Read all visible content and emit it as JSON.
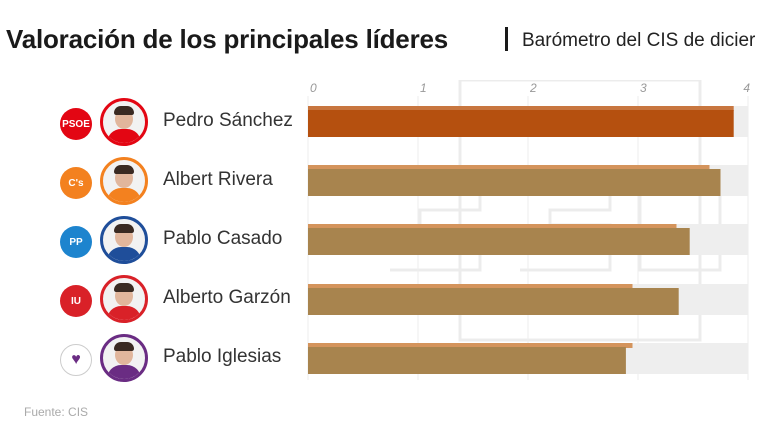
{
  "header": {
    "title": "Valoración de los principales líderes",
    "subtitle": "Barómetro del CIS de dicier"
  },
  "footer": {
    "source": "Fuente: CIS"
  },
  "leaders": [
    {
      "name": "Pedro Sánchez",
      "party_logo_text": "PSOE",
      "logo_bg": "#e30613",
      "logo_fg": "#ffffff",
      "ring_color": "#e30613"
    },
    {
      "name": "Albert Rivera",
      "party_logo_text": "C's",
      "logo_bg": "#f3811f",
      "logo_fg": "#ffffff",
      "ring_color": "#f3811f"
    },
    {
      "name": "Pablo Casado",
      "party_logo_text": "PP",
      "logo_bg": "#1d84ce",
      "logo_fg": "#ffffff",
      "ring_color": "#1f4e9a"
    },
    {
      "name": "Alberto Garzón",
      "party_logo_text": "IU",
      "logo_bg": "#d92128",
      "logo_fg": "#ffffff",
      "ring_color": "#d92128"
    },
    {
      "name": "Pablo Iglesias",
      "party_logo_text": "♥",
      "logo_bg": "#ffffff",
      "logo_fg": "#6a2c83",
      "ring_color": "#6a2c83"
    }
  ],
  "chart_data": {
    "type": "bar",
    "orientation": "horizontal",
    "categories": [
      "Pedro Sánchez",
      "Albert Rivera",
      "Pablo Casado",
      "Alberto Garzón",
      "Pablo Iglesias"
    ],
    "series": [
      {
        "values": [
          3.87,
          3.65,
          3.35,
          2.95,
          2.95
        ]
      },
      {
        "values": [
          3.87,
          3.75,
          3.47,
          3.37,
          2.89
        ]
      }
    ],
    "xlim": [
      0,
      4
    ],
    "ticks": [
      "0",
      "1",
      "2",
      "3",
      "4"
    ],
    "grid": true,
    "colors": {
      "highlight": "#b5500f",
      "bar": "#a8844e",
      "bar_top": "#d4945c",
      "track": "#eeeeee"
    }
  }
}
